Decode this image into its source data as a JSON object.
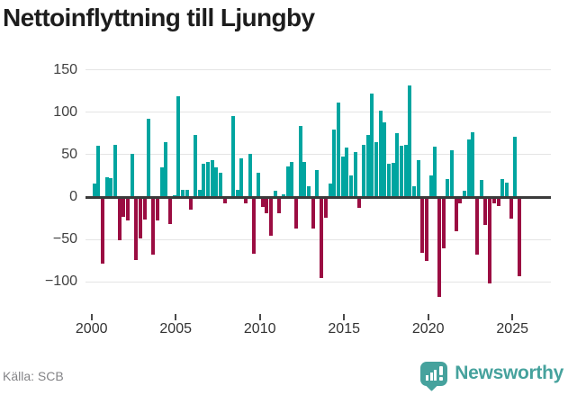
{
  "title": "Nettoinflyttning till Ljungby",
  "source": "Källa: SCB",
  "branding": {
    "logo_text": "Newsworthy",
    "logo_color": "#46a29d"
  },
  "chart_data": {
    "type": "bar",
    "title": "Nettoinflyttning till Ljungby",
    "xlabel": "",
    "ylabel": "",
    "frequency": "quarterly",
    "start_period": "2000Q1",
    "end_period": "2025Q2",
    "ylim": [
      -125,
      158
    ],
    "grid": "horizontal",
    "y_ticks": [
      150,
      100,
      50,
      0,
      -50,
      -100
    ],
    "y_tick_labels": [
      "150",
      "100",
      "50",
      "0",
      "−50",
      "−100"
    ],
    "x_tick_labels": [
      "2000",
      "2005",
      "2010",
      "2015",
      "2020",
      "2025"
    ],
    "colors": {
      "positive": "#00a5a0",
      "negative": "#9b0d42",
      "zero_axis": "#3b3b3b"
    },
    "series": [
      {
        "name": "Nettoinflyttning",
        "values": [
          16,
          60,
          -77,
          23,
          22,
          62,
          -49,
          -22,
          -26,
          51,
          -73,
          -47,
          -25,
          92,
          -66,
          -26,
          35,
          65,
          -30,
          2,
          119,
          9,
          9,
          -13,
          73,
          9,
          39,
          41,
          44,
          35,
          29,
          -6,
          0,
          96,
          9,
          46,
          -6,
          51,
          -65,
          29,
          -10,
          -17,
          -44,
          7,
          -18,
          3,
          36,
          41,
          -36,
          84,
          41,
          13,
          -36,
          32,
          -94,
          -23,
          16,
          80,
          111,
          48,
          58,
          25,
          53,
          -11,
          62,
          73,
          122,
          65,
          102,
          88,
          39,
          40,
          75,
          60,
          62,
          132,
          13,
          43,
          -64,
          -74,
          25,
          59,
          -116,
          -59,
          21,
          55,
          -39,
          -6,
          7,
          68,
          76,
          -66,
          20,
          -31,
          -100,
          -6,
          -9,
          21,
          17,
          -24,
          71,
          -92
        ]
      }
    ]
  }
}
